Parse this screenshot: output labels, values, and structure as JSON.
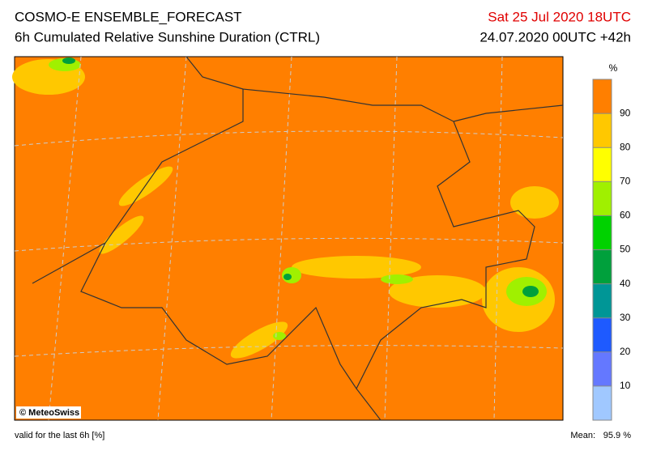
{
  "header": {
    "title": "COSMO-E ENSEMBLE_FORECAST",
    "subtitle": "6h Cumulated Relative Sunshine Duration (CTRL)",
    "valid_time": "Sat 25 Jul 2020 18UTC",
    "run": "24.07.2020 00UTC +42h"
  },
  "map": {
    "credit": "© MeteoSwiss"
  },
  "colorbar": {
    "unit": "%",
    "range": [
      0,
      100
    ],
    "ticks": [
      10,
      20,
      30,
      40,
      50,
      60,
      70,
      80,
      90
    ],
    "colors": [
      "#a0c8ff",
      "#6478ff",
      "#1e5aff",
      "#009696",
      "#00a03c",
      "#00d200",
      "#a0f000",
      "#ffff00",
      "#ffc800",
      "#ff7f00"
    ]
  },
  "footer": {
    "note": "valid for the last 6h [%]",
    "mean_label": "Mean:",
    "mean_value": "95.9 %"
  }
}
